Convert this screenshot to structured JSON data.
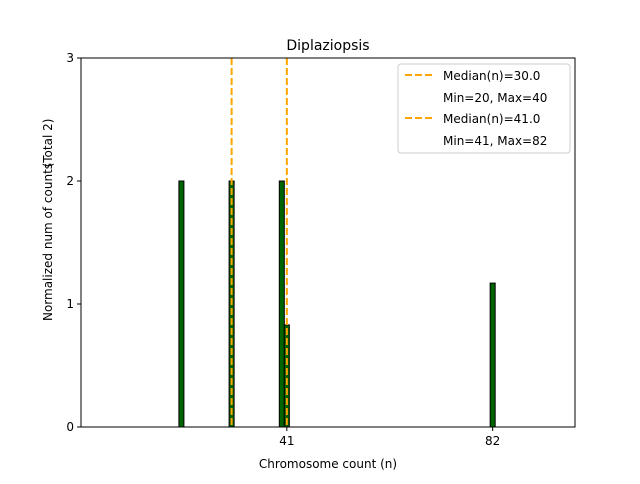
{
  "chart_data": {
    "type": "bar",
    "title": "Diplaziopsis",
    "xlabel": "Chromosome count (n)",
    "ylabel": "Normalized num of counts",
    "ylabel2": "(Total 2)",
    "xlim": [
      0,
      98.4
    ],
    "ylim": [
      0,
      3
    ],
    "xticks": [
      41,
      82
    ],
    "yticks": [
      0,
      1,
      2,
      3
    ],
    "bar_color": "#006400",
    "median_color": "#FFA500",
    "bars": [
      {
        "x": 20,
        "value": 2
      },
      {
        "x": 30,
        "value": 2
      },
      {
        "x": 40,
        "value": 2
      },
      {
        "x": 41,
        "value": 0.83
      },
      {
        "x": 82,
        "value": 1.17
      }
    ],
    "medians": [
      30,
      41
    ],
    "legend": {
      "placement": "top-right",
      "entries": [
        "Median(n)=30.0",
        "Min=20, Max=40",
        "Median(n)=41.0",
        "Min=41, Max=82"
      ]
    }
  }
}
